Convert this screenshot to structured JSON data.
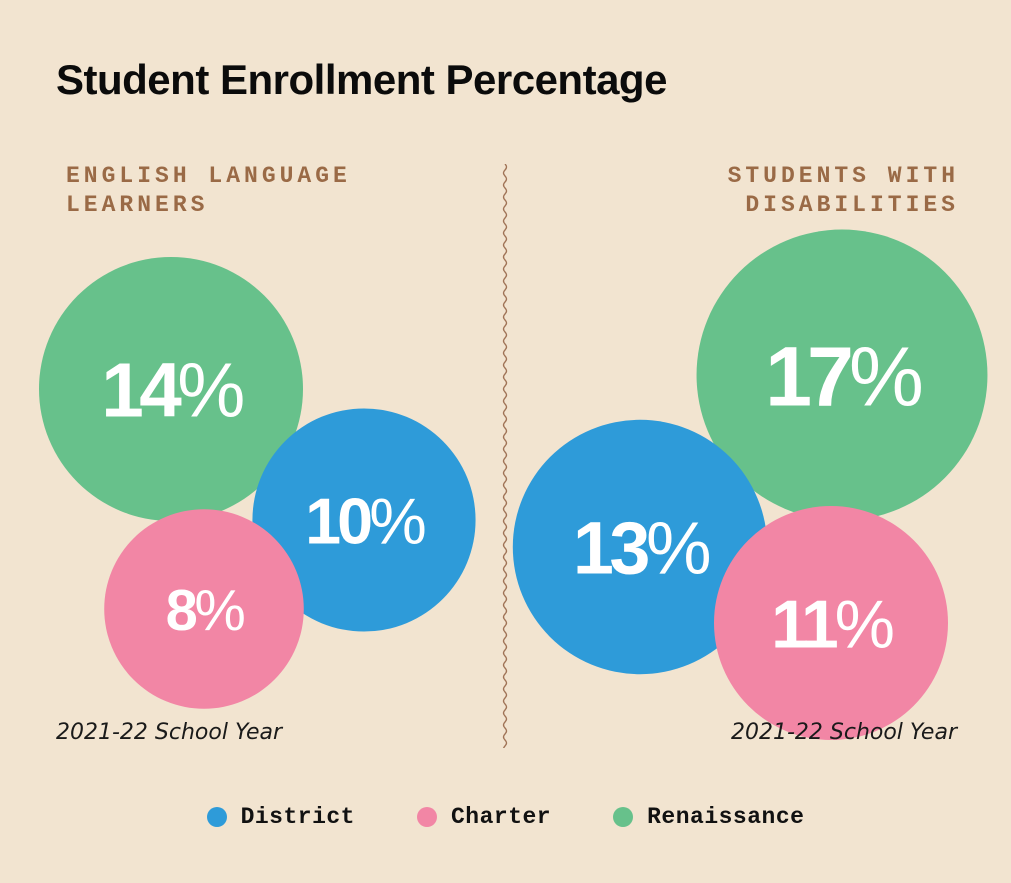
{
  "title": "Student Enrollment Percentage",
  "colors": {
    "District": "#2e9bd9",
    "Charter": "#f286a5",
    "Renaissance": "#67c18b",
    "background": "#f2e4d0",
    "label_text": "#9a6a46"
  },
  "legend": [
    {
      "name": "District",
      "label": "District"
    },
    {
      "name": "Charter",
      "label": "Charter"
    },
    {
      "name": "Renaissance",
      "label": "Renaissance"
    }
  ],
  "panels": {
    "left": {
      "label": "ENGLISH LANGUAGE\nLEARNERS",
      "year": "2021-22 School Year"
    },
    "right": {
      "label": "STUDENTS WITH\nDISABILITIES",
      "year": "2021-22 School Year"
    }
  },
  "chart_data": [
    {
      "type": "bubble",
      "title": "ENGLISH LANGUAGE LEARNERS",
      "subtitle": "2021-22 School Year",
      "categories": [
        "Renaissance",
        "District",
        "Charter"
      ],
      "values": [
        14,
        10,
        8
      ],
      "labels": [
        "14%",
        "10%",
        "8%"
      ],
      "unit": "%"
    },
    {
      "type": "bubble",
      "title": "STUDENTS WITH DISABILITIES",
      "subtitle": "2021-22 School Year",
      "categories": [
        "Renaissance",
        "District",
        "Charter"
      ],
      "values": [
        17,
        13,
        11
      ],
      "labels": [
        "17%",
        "13%",
        "11%"
      ],
      "unit": "%"
    }
  ]
}
